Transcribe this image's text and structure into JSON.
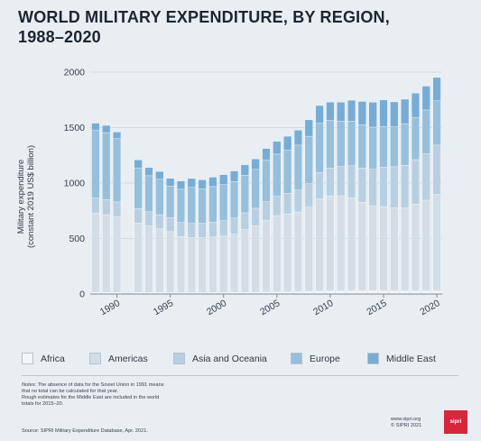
{
  "title_line1": "WORLD MILITARY EXPENDITURE, BY REGION,",
  "title_line2": "1988–2020",
  "chart_data": {
    "type": "bar",
    "stacked": true,
    "ylabel_line1": "Military expenditure",
    "ylabel_line2": "(constant 2019 US$ billion)",
    "ylim": [
      0,
      2000
    ],
    "yticks": [
      "0",
      "500",
      "1000",
      "1500",
      "2000"
    ],
    "xticks": [
      "1990",
      "1995",
      "2000",
      "2005",
      "2010",
      "2015",
      "2020"
    ],
    "grid": true,
    "legend_position": "bottom",
    "categories": [
      "1988",
      "1989",
      "1990",
      "1991",
      "1992",
      "1993",
      "1994",
      "1995",
      "1996",
      "1997",
      "1998",
      "1999",
      "2000",
      "2001",
      "2002",
      "2003",
      "2004",
      "2005",
      "2006",
      "2007",
      "2008",
      "2009",
      "2010",
      "2011",
      "2012",
      "2013",
      "2014",
      "2015",
      "2016",
      "2017",
      "2018",
      "2019",
      "2020"
    ],
    "series": [
      {
        "name": "Africa",
        "color": "#f4f7fa",
        "values": [
          15,
          15,
          15,
          null,
          14,
          13,
          13,
          12,
          12,
          12,
          12,
          13,
          13,
          14,
          15,
          15,
          16,
          17,
          18,
          20,
          22,
          24,
          25,
          26,
          27,
          28,
          29,
          28,
          27,
          26,
          26,
          26,
          27
        ]
      },
      {
        "name": "Americas",
        "color": "#d3dde6",
        "values": [
          715,
          700,
          680,
          null,
          625,
          600,
          575,
          550,
          505,
          495,
          495,
          500,
          510,
          525,
          565,
          600,
          650,
          690,
          705,
          720,
          760,
          835,
          860,
          860,
          840,
          800,
          765,
          760,
          750,
          750,
          785,
          820,
          870
        ]
      },
      {
        "name": "Asia and Oceania",
        "color": "#b8cfe2",
        "values": [
          135,
          135,
          135,
          null,
          130,
          128,
          127,
          126,
          127,
          129,
          130,
          133,
          138,
          145,
          152,
          158,
          166,
          174,
          184,
          197,
          212,
          235,
          250,
          263,
          290,
          308,
          330,
          356,
          370,
          385,
          400,
          418,
          445
        ]
      },
      {
        "name": "Europe",
        "color": "#96bfdc",
        "values": [
          610,
          605,
          570,
          null,
          365,
          325,
          320,
          285,
          300,
          325,
          312,
          322,
          325,
          330,
          340,
          350,
          375,
          380,
          390,
          405,
          428,
          445,
          430,
          410,
          400,
          390,
          380,
          365,
          360,
          375,
          380,
          395,
          400
        ]
      },
      {
        "name": "Middle East",
        "color": "#77add4",
        "values": [
          65,
          65,
          60,
          null,
          75,
          75,
          70,
          70,
          75,
          80,
          80,
          85,
          90,
          95,
          92,
          95,
          105,
          115,
          125,
          135,
          148,
          160,
          165,
          170,
          190,
          210,
          225,
          240,
          225,
          220,
          220,
          215,
          210
        ]
      }
    ]
  },
  "notes_title": "Notes:",
  "notes_line1_rest": " The absence of data for the Soviet Union in 1991 means",
  "notes_line2": "that no total can be calculated for that year.",
  "notes_line3": "Rough estimates for the Middle East are included in the world",
  "notes_line4": "totals for 2015–20.",
  "source": "Source: SIPRI Military Expenditure Database, Apr. 2021.",
  "website": "www.sipri.org",
  "copyright": "© SIPRI 2021",
  "logo_text": "sipri"
}
